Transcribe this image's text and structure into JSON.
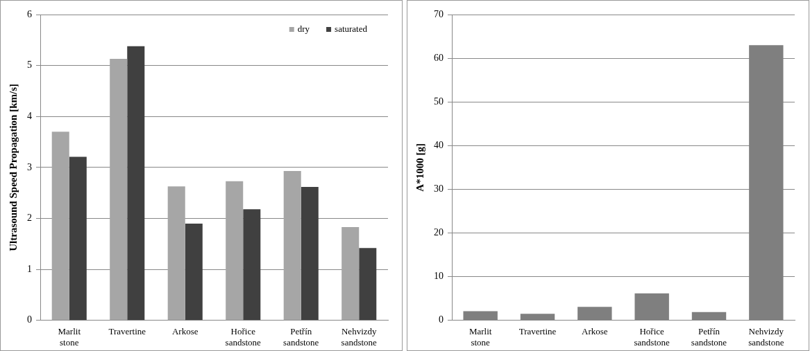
{
  "chart_data": [
    {
      "type": "bar",
      "ylabel": "Ultrasound Speed Propagation [km/s]",
      "categories": [
        "Marlit stone",
        "Travertine",
        "Arkose",
        "Hořice sandstone",
        "Petřín sandstone",
        "Nehvizdy sandstone"
      ],
      "series": [
        {
          "name": "dry",
          "color": "#a6a6a6",
          "values": [
            3.7,
            5.13,
            2.63,
            2.73,
            2.93,
            1.83
          ]
        },
        {
          "name": "saturated",
          "color": "#404040",
          "values": [
            3.21,
            5.38,
            1.9,
            2.18,
            2.62,
            1.42
          ]
        }
      ],
      "ylim": [
        0,
        6
      ],
      "yticks": [
        0,
        1,
        2,
        3,
        4,
        5,
        6
      ],
      "grid": "y",
      "legend": "top right"
    },
    {
      "type": "bar",
      "ylabel": "A*1000 [g]",
      "categories": [
        "Marlit stone",
        "Travertine",
        "Arkose",
        "Hořice sandstone",
        "Petřín sandstone",
        "Nehvizdy sandstone"
      ],
      "series": [
        {
          "color": "#7f7f7f",
          "values": [
            2.1,
            1.5,
            3.1,
            6.2,
            1.9,
            63
          ]
        }
      ],
      "ylim": [
        0,
        70
      ],
      "yticks": [
        0,
        10,
        20,
        30,
        40,
        50,
        60,
        70
      ],
      "grid": "y"
    }
  ]
}
